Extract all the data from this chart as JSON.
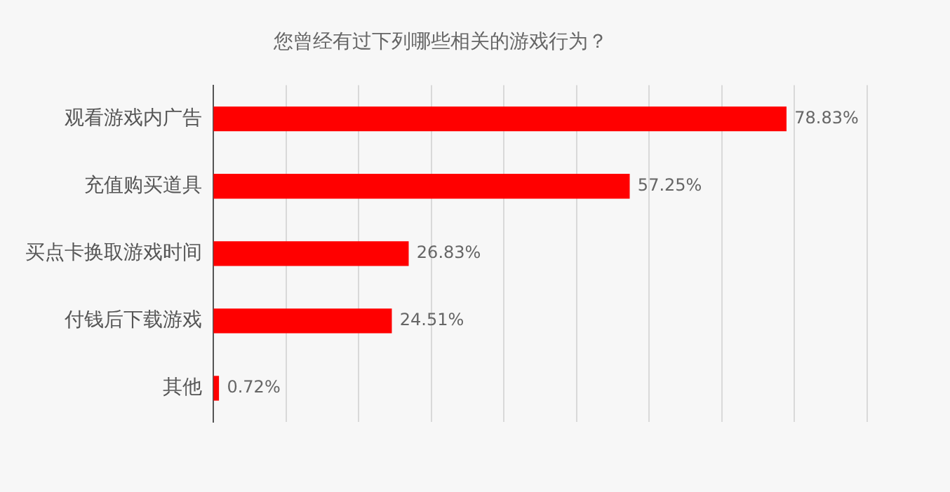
{
  "chart_data": {
    "type": "bar",
    "orientation": "horizontal",
    "title": "您曾经有过下列哪些相关的游戏行为？",
    "categories": [
      "观看游戏内广告",
      "充值购买道具",
      "买点卡换取游戏时间",
      "付钱后下载游戏",
      "其他"
    ],
    "values": [
      78.83,
      57.25,
      26.83,
      24.51,
      0.72
    ],
    "color": "#ff0000",
    "value_labels": [
      "78.83%",
      "57.25%",
      "26.83%",
      "24.51%",
      "0.72%"
    ],
    "xlim": [
      0,
      90
    ],
    "xticks": [
      {
        "value": 0,
        "label": null
      },
      {
        "value": 10,
        "label": null
      },
      {
        "value": 20,
        "label": null
      },
      {
        "value": 30,
        "label": null
      },
      {
        "value": 40,
        "label": null
      },
      {
        "value": 50,
        "label": null
      },
      {
        "value": 60,
        "label": null
      },
      {
        "value": 70,
        "label": null
      },
      {
        "value": 80,
        "label": null
      },
      {
        "value": 90,
        "label": null
      }
    ],
    "grid": "x",
    "tick_labels": "y",
    "legend": false
  }
}
